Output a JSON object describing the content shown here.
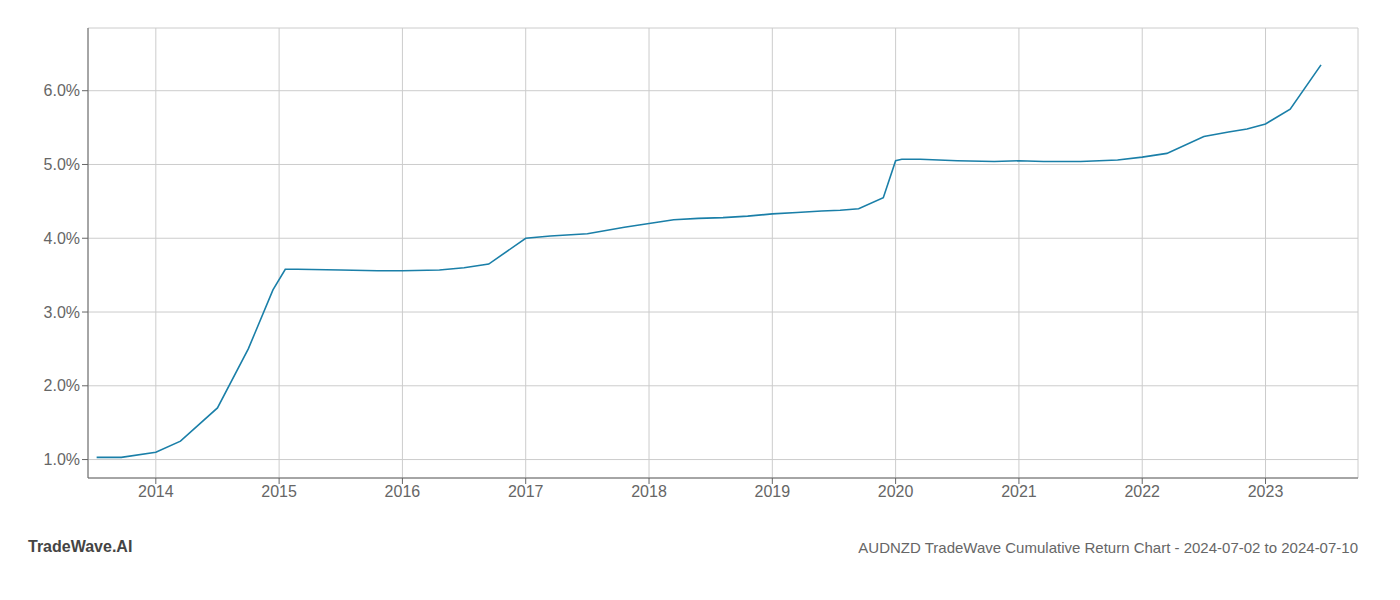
{
  "chart_data": {
    "type": "line",
    "title": "AUDNZD TradeWave Cumulative Return Chart - 2024-07-02 to 2024-07-10",
    "annotations": [
      "TradeWave.AI"
    ],
    "x": [
      2013.52,
      2013.72,
      2014.0,
      2014.2,
      2014.5,
      2014.75,
      2014.95,
      2015.05,
      2015.15,
      2015.5,
      2015.8,
      2016.0,
      2016.3,
      2016.5,
      2016.7,
      2017.0,
      2017.2,
      2017.5,
      2017.8,
      2018.0,
      2018.2,
      2018.4,
      2018.6,
      2018.8,
      2019.0,
      2019.2,
      2019.4,
      2019.55,
      2019.7,
      2019.9,
      2020.0,
      2020.05,
      2020.2,
      2020.5,
      2020.8,
      2021.0,
      2021.2,
      2021.5,
      2021.8,
      2022.0,
      2022.2,
      2022.5,
      2022.7,
      2022.85,
      2023.0,
      2023.2,
      2023.45
    ],
    "values": [
      1.03,
      1.03,
      1.1,
      1.25,
      1.7,
      2.5,
      3.3,
      3.58,
      3.58,
      3.57,
      3.56,
      3.56,
      3.57,
      3.6,
      3.65,
      4.0,
      4.03,
      4.06,
      4.15,
      4.2,
      4.25,
      4.27,
      4.28,
      4.3,
      4.33,
      4.35,
      4.37,
      4.38,
      4.4,
      4.55,
      5.05,
      5.07,
      5.07,
      5.05,
      5.04,
      5.05,
      5.04,
      5.04,
      5.06,
      5.1,
      5.15,
      5.38,
      5.44,
      5.48,
      5.55,
      5.75,
      6.35
    ],
    "color": "#1a7fa8",
    "xlim": [
      2013.45,
      2023.75
    ],
    "ylim": [
      0.75,
      6.85
    ],
    "xticks": [
      2014,
      2015,
      2016,
      2017,
      2018,
      2019,
      2020,
      2021,
      2022,
      2023
    ],
    "yticks": [
      {
        "value": 1.0,
        "label": "1.0%"
      },
      {
        "value": 2.0,
        "label": "2.0%"
      },
      {
        "value": 3.0,
        "label": "3.0%"
      },
      {
        "value": 4.0,
        "label": "4.0%"
      },
      {
        "value": 5.0,
        "label": "5.0%"
      },
      {
        "value": 6.0,
        "label": "6.0%"
      }
    ],
    "grid": true
  }
}
